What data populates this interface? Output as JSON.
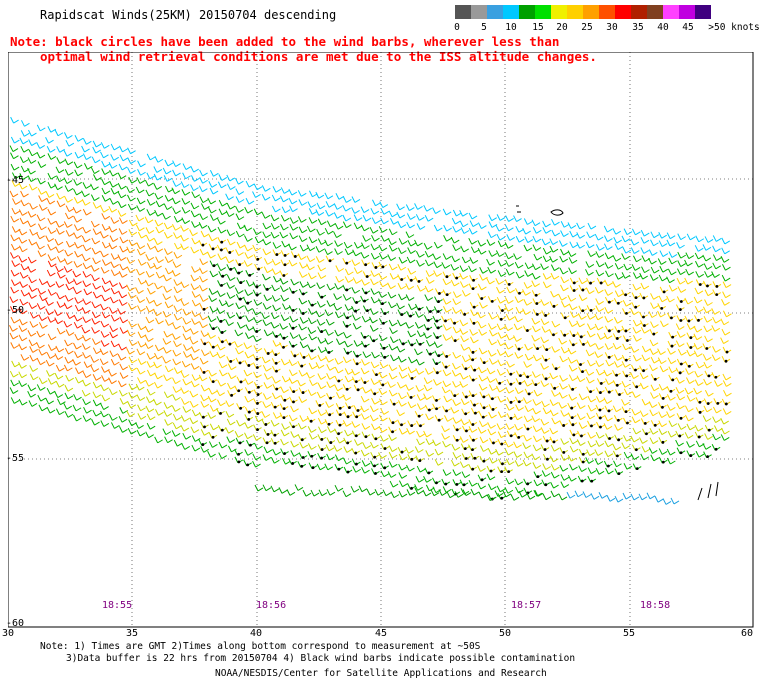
{
  "title": "Rapidscat Winds(25KM) 20150704 descending",
  "note": {
    "line1": "Note: black circles have been added to the wind barbs, wherever less than",
    "line2": "optimal wind retrieval conditions are met due to the ISS altitude changes."
  },
  "legend": {
    "colors": [
      "#555555",
      "#999999",
      "#3aa0e0",
      "#00c8ff",
      "#00a000",
      "#00e000",
      "#f0f000",
      "#ffd000",
      "#ffa000",
      "#ff5000",
      "#ff0000",
      "#b02000",
      "#804020",
      "#ff40ff",
      "#c000e0",
      "#400080"
    ],
    "labels": [
      "0",
      "5",
      "10",
      "15",
      "20",
      "25",
      "30",
      "35",
      "40",
      "45",
      ">50 knots"
    ]
  },
  "map": {
    "lat_labels": [
      "-45",
      "-50",
      "-55",
      "-60"
    ],
    "lon_labels": [
      "30",
      "35",
      "40",
      "45",
      "50",
      "55",
      "60"
    ],
    "times": [
      "18:55",
      "18:56",
      "18:57",
      "18:58"
    ]
  },
  "footer": {
    "line1": "Note: 1) Times are GMT 2)Times along bottom correspond to measurement at ~50S",
    "line2": "3)Data buffer is 22 hrs from 20150704 4) Black wind barbs indicate possible contamination",
    "line3": "NOAA/NESDIS/Center for Satellite Applications and Research"
  }
}
